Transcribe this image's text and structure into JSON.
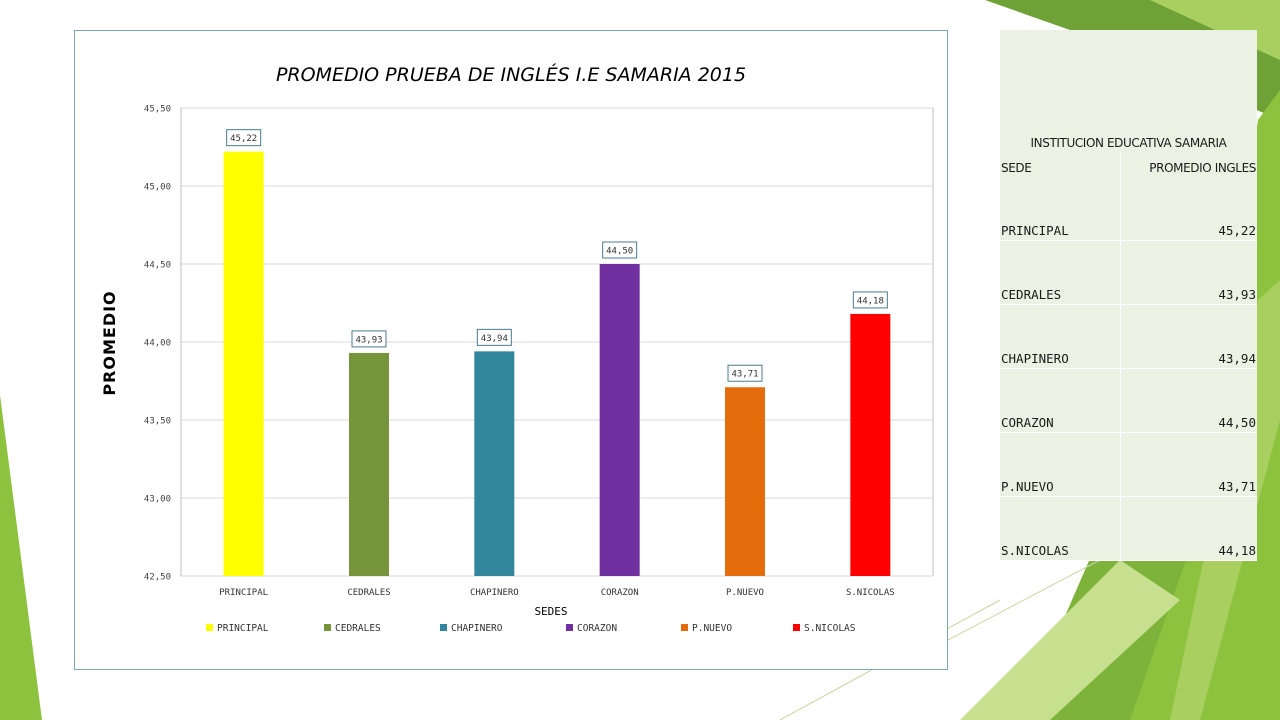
{
  "colors": {
    "green_dark": "#6fa236",
    "green_mid": "#8dc23f",
    "green_light": "#c7e08f",
    "gridline": "#d9d9d9",
    "label_border": "#4a7b8c"
  },
  "chart_data": {
    "type": "bar",
    "title": "PROMEDIO PRUEBA DE INGLÉS I.E SAMARIA 2015",
    "xlabel": "SEDES",
    "ylabel": "PROMEDIO",
    "categories": [
      "PRINCIPAL",
      "CEDRALES",
      "CHAPINERO",
      "CORAZON",
      "P.NUEVO",
      "S.NICOLAS"
    ],
    "values": [
      45.22,
      43.93,
      43.94,
      44.5,
      43.71,
      44.18
    ],
    "value_labels": [
      "45,22",
      "43,93",
      "43,94",
      "44,50",
      "43,71",
      "44,18"
    ],
    "bar_colors": [
      "#ffff00",
      "#76953a",
      "#31869b",
      "#7030a0",
      "#e46c0a",
      "#ff0000"
    ],
    "ylim": [
      42.5,
      45.5
    ],
    "yticks": [
      42.5,
      43.0,
      43.5,
      44.0,
      44.5,
      45.0,
      45.5
    ],
    "ytick_labels": [
      "42,50",
      "43,00",
      "43,50",
      "44,00",
      "44,50",
      "45,00",
      "45,50"
    ],
    "grid": true,
    "legend": {
      "placement": "bottom",
      "entries": [
        "PRINCIPAL",
        "CEDRALES",
        "CHAPINERO",
        "CORAZON",
        "P.NUEVO",
        "S.NICOLAS"
      ]
    }
  },
  "table": {
    "title": "INSTITUCION EDUCATIVA SAMARIA",
    "headers": [
      "SEDE",
      "PROMEDIO INGLES"
    ],
    "rows": [
      [
        "PRINCIPAL",
        "45,22"
      ],
      [
        "CEDRALES",
        "43,93"
      ],
      [
        "CHAPINERO",
        "43,94"
      ],
      [
        "CORAZON",
        "44,50"
      ],
      [
        "P.NUEVO",
        "43,71"
      ],
      [
        "S.NICOLAS",
        "44,18"
      ]
    ]
  }
}
